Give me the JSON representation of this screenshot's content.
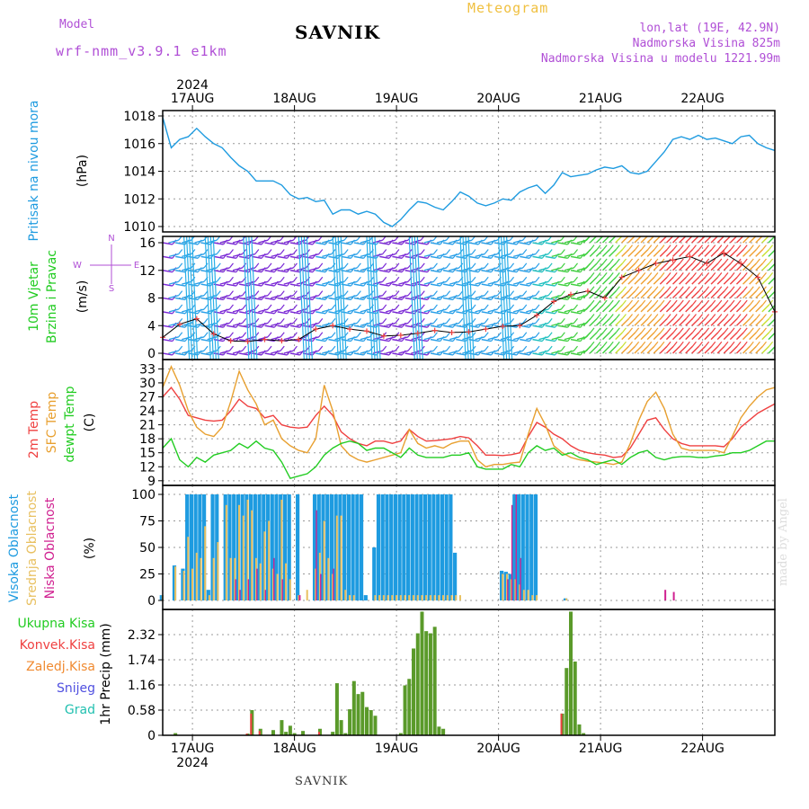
{
  "header": {
    "model_label": "Model",
    "model_name": "wrf-nmm_v3.9.1  e1km",
    "station": "SAVNIK",
    "meteogram": "Meteogram",
    "lonlat": "lon,lat (19E, 42.9N)",
    "elevation": "Nadmorska Visina 825m",
    "model_elevation": "Nadmorska Visina u modelu 1221.99m",
    "year": "2024",
    "footer_station": "SAVNIK",
    "credit": "made by Angel"
  },
  "colors": {
    "pressure": "#1e9be0",
    "temp2m": "#ef4040",
    "sfc": "#e8a030",
    "dewpt": "#22cc22",
    "high_cloud": "#1e9be0",
    "mid_cloud": "#e8c060",
    "low_cloud": "#d02090",
    "rain_total": "#5a9a2a",
    "rain_conv": "#ef4040",
    "purple": "#b04fd6"
  },
  "chart_data": [
    {
      "type": "line",
      "panel": "pressure",
      "ylabel": "Pritisak na nivou mora",
      "unit": "(hPa)",
      "ylim": [
        1010,
        1018
      ],
      "yticks": [
        "1010",
        "1012",
        "1014",
        "1016",
        "1018"
      ],
      "xlabels": [
        "17AUG",
        "18AUG",
        "19AUG",
        "20AUG",
        "21AUG",
        "22AUG"
      ],
      "x_range_hours": [
        0,
        144
      ],
      "series": [
        {
          "name": "",
          "x": [
            0,
            2,
            4,
            6,
            8,
            10,
            12,
            14,
            16,
            18,
            20,
            22,
            24,
            26,
            28,
            30,
            32,
            34,
            36,
            38,
            40,
            42,
            44,
            46,
            48,
            50,
            52,
            54,
            56,
            58,
            60,
            62,
            64,
            66,
            68,
            70,
            72,
            74,
            76,
            78,
            80,
            82,
            84,
            86,
            88,
            90,
            92,
            94,
            96,
            98,
            100,
            102,
            104,
            106,
            108,
            110,
            112,
            114,
            116,
            118,
            120,
            122,
            124,
            126,
            128,
            130,
            132,
            134,
            136,
            138,
            140,
            142,
            144
          ],
          "values": [
            1017.9,
            1015.7,
            1016.3,
            1016.5,
            1017.1,
            1016.5,
            1016.0,
            1015.7,
            1015.0,
            1014.4,
            1014.0,
            1013.3,
            1013.3,
            1013.3,
            1013.0,
            1012.3,
            1012.0,
            1012.1,
            1011.8,
            1011.9,
            1010.9,
            1011.2,
            1011.2,
            1010.9,
            1011.1,
            1010.9,
            1010.3,
            1010.0,
            1010.5,
            1011.2,
            1011.8,
            1011.7,
            1011.4,
            1011.2,
            1011.8,
            1012.5,
            1012.2,
            1011.7,
            1011.5,
            1011.7,
            1012.0,
            1011.9,
            1012.5,
            1012.8,
            1013.0,
            1012.4,
            1013.0,
            1013.9,
            1013.6,
            1013.7,
            1013.8,
            1014.1,
            1014.3,
            1014.2,
            1014.4,
            1013.9,
            1013.8,
            1014.0,
            1014.7,
            1015.4,
            1016.3,
            1016.5,
            1016.3,
            1016.6,
            1016.3,
            1016.4,
            1016.2,
            1016.0,
            1016.5,
            1016.6,
            1016.0,
            1015.7,
            1015.5
          ]
        }
      ]
    },
    {
      "type": "scatter",
      "panel": "wind",
      "ylabel": "10m Vjetar Brzina i Pravac",
      "unit": "(m/s)",
      "ylim": [
        0,
        16
      ],
      "yticks": [
        "0",
        "4",
        "8",
        "12",
        "16"
      ],
      "compass": [
        "N",
        "W",
        "E",
        "S"
      ],
      "series": [
        {
          "name": "",
          "x": [
            0,
            4,
            8,
            12,
            16,
            20,
            24,
            28,
            32,
            36,
            40,
            44,
            48,
            52,
            56,
            60,
            64,
            68,
            72,
            76,
            80,
            84,
            88,
            92,
            96,
            100,
            104,
            108,
            112,
            116,
            120,
            124,
            128,
            132,
            136,
            140,
            144
          ],
          "values": [
            2.3,
            4.2,
            5.0,
            2.8,
            1.8,
            1.7,
            2.0,
            1.8,
            2.0,
            3.5,
            4.0,
            3.5,
            3.2,
            2.5,
            2.6,
            2.9,
            3.3,
            3.0,
            3.1,
            3.5,
            3.9,
            4.0,
            5.5,
            7.5,
            8.5,
            9.0,
            8.0,
            11.0,
            12.0,
            13.0,
            13.5,
            14.0,
            13.0,
            14.5,
            13.0,
            11.0,
            6.0
          ]
        }
      ]
    },
    {
      "type": "line",
      "panel": "temperature",
      "legend": [
        "2m Temp",
        "SFC Temp",
        "dewpt Temp"
      ],
      "unit": "(C)",
      "ylim": [
        8,
        35
      ],
      "yticks": [
        "9",
        "12",
        "15",
        "18",
        "21",
        "24",
        "27",
        "30",
        "33"
      ],
      "x": [
        0,
        2,
        4,
        6,
        8,
        10,
        12,
        14,
        16,
        18,
        20,
        22,
        24,
        26,
        28,
        30,
        32,
        34,
        36,
        38,
        40,
        42,
        44,
        46,
        48,
        50,
        52,
        54,
        56,
        58,
        60,
        62,
        64,
        66,
        68,
        70,
        72,
        74,
        76,
        78,
        80,
        82,
        84,
        86,
        88,
        90,
        92,
        94,
        96,
        98,
        100,
        102,
        104,
        106,
        108,
        110,
        112,
        114,
        116,
        118,
        120,
        122,
        124,
        126,
        128,
        130,
        132,
        134,
        136,
        138,
        140,
        142,
        144
      ],
      "series": [
        {
          "name": "2m Temp",
          "values": [
            27.0,
            29.0,
            26.5,
            23.0,
            22.5,
            22.0,
            21.8,
            22.0,
            24.0,
            26.5,
            25.0,
            24.5,
            22.5,
            23.0,
            21.0,
            20.5,
            20.3,
            20.5,
            23.0,
            25.0,
            23.0,
            19.5,
            18.0,
            17.0,
            16.5,
            17.5,
            17.5,
            17.0,
            17.5,
            20.0,
            18.5,
            17.5,
            17.6,
            17.8,
            18.0,
            18.5,
            18.2,
            16.5,
            14.5,
            14.5,
            14.4,
            14.6,
            15.0,
            18.5,
            21.5,
            20.5,
            19.0,
            18.0,
            16.5,
            15.5,
            15.0,
            14.7,
            14.5,
            14.0,
            14.2,
            16.0,
            19.0,
            22.0,
            22.5,
            20.0,
            18.0,
            17.0,
            16.5,
            16.5,
            16.5,
            16.5,
            16.3,
            18.0,
            20.5,
            22.0,
            23.5,
            24.5,
            25.5
          ]
        },
        {
          "name": "SFC Temp",
          "values": [
            29.0,
            33.5,
            29.5,
            24.0,
            20.5,
            19.0,
            18.5,
            20.5,
            26.0,
            32.5,
            28.5,
            25.5,
            21.0,
            22.0,
            18.0,
            16.5,
            15.5,
            15.0,
            18.0,
            29.5,
            24.0,
            16.5,
            14.5,
            13.5,
            13.0,
            13.5,
            14.0,
            14.5,
            15.0,
            20.0,
            17.0,
            16.0,
            16.5,
            16.0,
            17.0,
            17.5,
            17.5,
            13.5,
            12.0,
            12.5,
            12.5,
            12.8,
            13.0,
            19.0,
            24.5,
            21.0,
            16.5,
            15.0,
            14.0,
            13.5,
            13.2,
            13.0,
            12.8,
            12.5,
            13.0,
            17.0,
            22.0,
            26.0,
            28.0,
            24.5,
            19.0,
            16.0,
            15.5,
            15.5,
            15.5,
            15.5,
            15.0,
            18.5,
            22.5,
            25.0,
            27.0,
            28.5,
            29.0
          ]
        },
        {
          "name": "dewpt Temp",
          "values": [
            16.0,
            18.0,
            13.5,
            12.0,
            14.0,
            13.0,
            14.5,
            15.0,
            15.5,
            17.0,
            16.0,
            17.5,
            16.0,
            15.5,
            13.0,
            9.5,
            10.0,
            10.5,
            12.0,
            14.5,
            16.0,
            17.0,
            17.5,
            17.0,
            15.5,
            16.0,
            16.0,
            15.0,
            14.0,
            16.0,
            14.5,
            14.0,
            14.0,
            14.0,
            14.5,
            14.5,
            15.0,
            12.0,
            11.5,
            11.5,
            11.5,
            12.5,
            12.0,
            15.0,
            16.5,
            15.5,
            16.0,
            14.5,
            15.0,
            14.0,
            13.5,
            12.5,
            13.0,
            13.5,
            12.5,
            14.0,
            15.0,
            15.5,
            14.0,
            13.5,
            14.0,
            14.2,
            14.2,
            14.0,
            14.0,
            14.3,
            14.5,
            15.0,
            15.0,
            15.5,
            16.5,
            17.5,
            17.5
          ]
        }
      ]
    },
    {
      "type": "bar",
      "panel": "cloud",
      "legend": [
        "Visoka Oblacnost",
        "Srednja Oblacnost",
        "Niska Oblacnost"
      ],
      "unit": "(%)",
      "ylim": [
        0,
        100
      ],
      "yticks": [
        "0",
        "25",
        "50",
        "75",
        "100"
      ],
      "x": [
        0,
        3,
        5,
        6,
        7,
        8,
        9,
        10,
        11,
        12,
        13,
        15,
        16,
        17,
        18,
        19,
        20,
        21,
        22,
        23,
        24,
        25,
        26,
        27,
        28,
        29,
        30,
        32,
        34,
        36,
        37,
        38,
        39,
        40,
        41,
        42,
        43,
        44,
        45,
        46,
        47,
        48,
        50,
        51,
        52,
        53,
        54,
        55,
        56,
        57,
        58,
        59,
        60,
        61,
        62,
        63,
        64,
        65,
        66,
        67,
        68,
        69,
        70,
        80,
        81,
        82,
        83,
        84,
        85,
        86,
        87,
        88,
        95,
        118,
        120
      ],
      "series": [
        {
          "name": "Visoka Oblacnost",
          "values": [
            5,
            33,
            30,
            100,
            100,
            100,
            100,
            100,
            10,
            100,
            100,
            100,
            100,
            100,
            100,
            100,
            100,
            100,
            100,
            100,
            100,
            100,
            100,
            100,
            100,
            100,
            100,
            100,
            0,
            100,
            100,
            100,
            100,
            100,
            100,
            100,
            100,
            100,
            100,
            100,
            100,
            5,
            50,
            100,
            100,
            100,
            100,
            100,
            100,
            100,
            100,
            100,
            100,
            100,
            100,
            100,
            100,
            100,
            100,
            100,
            100,
            45,
            0,
            28,
            27,
            25,
            100,
            100,
            100,
            100,
            100,
            100,
            2,
            0,
            0
          ]
        },
        {
          "name": "Srednja Oblacnost",
          "values": [
            5,
            32,
            28,
            60,
            30,
            45,
            40,
            70,
            5,
            40,
            55,
            90,
            40,
            40,
            90,
            80,
            95,
            85,
            40,
            35,
            65,
            75,
            30,
            25,
            95,
            35,
            20,
            5,
            10,
            30,
            45,
            75,
            40,
            25,
            80,
            80,
            10,
            5,
            5,
            0,
            0,
            0,
            5,
            5,
            5,
            5,
            5,
            5,
            5,
            5,
            5,
            5,
            5,
            5,
            5,
            5,
            5,
            5,
            5,
            5,
            5,
            5,
            5,
            25,
            25,
            20,
            20,
            15,
            10,
            10,
            5,
            5,
            2,
            0,
            0
          ]
        },
        {
          "name": "Niska Oblacnost",
          "values": [
            0,
            0,
            0,
            0,
            0,
            0,
            0,
            0,
            0,
            0,
            0,
            0,
            0,
            20,
            10,
            0,
            20,
            0,
            30,
            0,
            10,
            0,
            40,
            0,
            20,
            0,
            0,
            5,
            0,
            85,
            25,
            0,
            0,
            30,
            0,
            0,
            0,
            0,
            0,
            0,
            0,
            0,
            0,
            0,
            0,
            0,
            0,
            0,
            0,
            0,
            0,
            0,
            0,
            0,
            0,
            0,
            0,
            0,
            0,
            0,
            0,
            0,
            0,
            0,
            20,
            90,
            100,
            40,
            0,
            0,
            0,
            0,
            0,
            10,
            8
          ]
        }
      ]
    },
    {
      "type": "bar",
      "panel": "precip",
      "legend": [
        "Ukupna Kisa",
        "Konvek.Kisa",
        "Zaledj.Kisa",
        "Snijeg",
        "Grad"
      ],
      "ylabel": "1hr Precip (mm)",
      "ylim": [
        0,
        2.9
      ],
      "yticks": [
        "0",
        "0.58",
        "1.16",
        "1.74",
        "2.32"
      ],
      "x": [
        3,
        20,
        21,
        23,
        26,
        28,
        29,
        30,
        31,
        33,
        37,
        40,
        41,
        42,
        43,
        44,
        45,
        46,
        47,
        48,
        49,
        50,
        56,
        57,
        58,
        59,
        60,
        61,
        62,
        63,
        64,
        65,
        66,
        94,
        95,
        96,
        97,
        98,
        99
      ],
      "series": [
        {
          "name": "Ukupna Kisa",
          "values": [
            0.05,
            0.04,
            0.58,
            0.15,
            0.12,
            0.35,
            0.08,
            0.22,
            0.05,
            0.1,
            0.15,
            0.08,
            1.2,
            0.35,
            0.05,
            0.6,
            1.25,
            0.95,
            1.0,
            0.65,
            0.58,
            0.45,
            0.05,
            1.15,
            1.3,
            2.0,
            2.35,
            2.85,
            2.4,
            2.35,
            2.5,
            0.2,
            0.15,
            0.5,
            1.55,
            2.85,
            1.7,
            0.25,
            0.05
          ]
        },
        {
          "name": "Konvek.Kisa",
          "values": [
            0.0,
            0.04,
            0.5,
            0.1,
            0.0,
            0.0,
            0.0,
            0.0,
            0.0,
            0.0,
            0.08,
            0.0,
            0.0,
            0.0,
            0.0,
            0.0,
            0.0,
            0.0,
            0.0,
            0.0,
            0.0,
            0.0,
            0.0,
            0.0,
            0.0,
            0.0,
            0.0,
            0.0,
            0.0,
            0.0,
            0.0,
            0.0,
            0.0,
            0.5,
            0.0,
            0.0,
            0.0,
            0.0,
            0.0
          ]
        }
      ]
    }
  ],
  "x_axis_top": [
    "17AUG",
    "18AUG",
    "19AUG",
    "20AUG",
    "21AUG",
    "22AUG"
  ],
  "x_axis_bottom": [
    "17AUG",
    "18AUG",
    "19AUG",
    "20AUG",
    "21AUG",
    "22AUG"
  ]
}
